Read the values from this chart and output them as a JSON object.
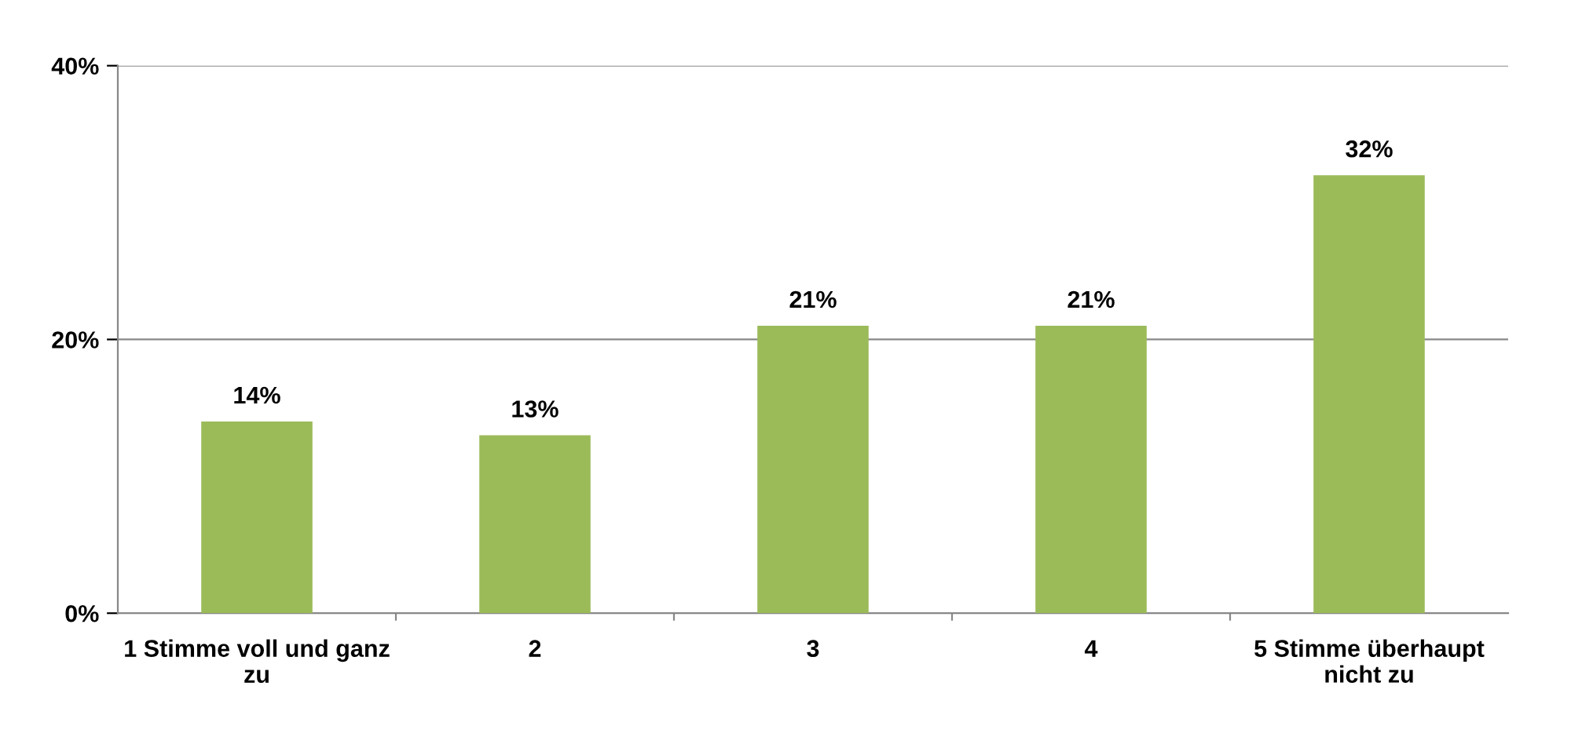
{
  "chart_data": {
    "type": "bar",
    "categories": [
      "1 Stimme voll und ganz\nzu",
      "2",
      "3",
      "4",
      "5 Stimme überhaupt\nnicht zu"
    ],
    "values": [
      14,
      13,
      21,
      21,
      32
    ],
    "value_labels": [
      "14%",
      "13%",
      "21%",
      "21%",
      "32%"
    ],
    "color": "#9bbb59",
    "ylim": [
      0,
      40
    ],
    "yticks": [
      {
        "value": 0,
        "label": "0%"
      },
      {
        "value": 20,
        "label": "20%"
      },
      {
        "value": 40,
        "label": "40%"
      }
    ],
    "grid": "y"
  }
}
